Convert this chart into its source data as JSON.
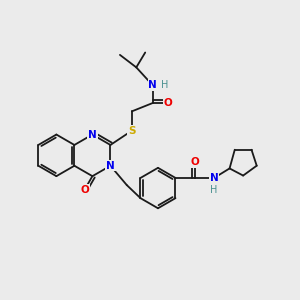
{
  "background_color": "#ebebeb",
  "bond_color": "#1a1a1a",
  "atom_colors": {
    "N": "#0000ee",
    "O": "#ee0000",
    "S": "#ccaa00",
    "H": "#4a9090",
    "C": "#1a1a1a"
  },
  "figsize": [
    3.0,
    3.0
  ],
  "dpi": 100,
  "xlim": [
    0,
    10
  ],
  "ylim": [
    0,
    10
  ]
}
